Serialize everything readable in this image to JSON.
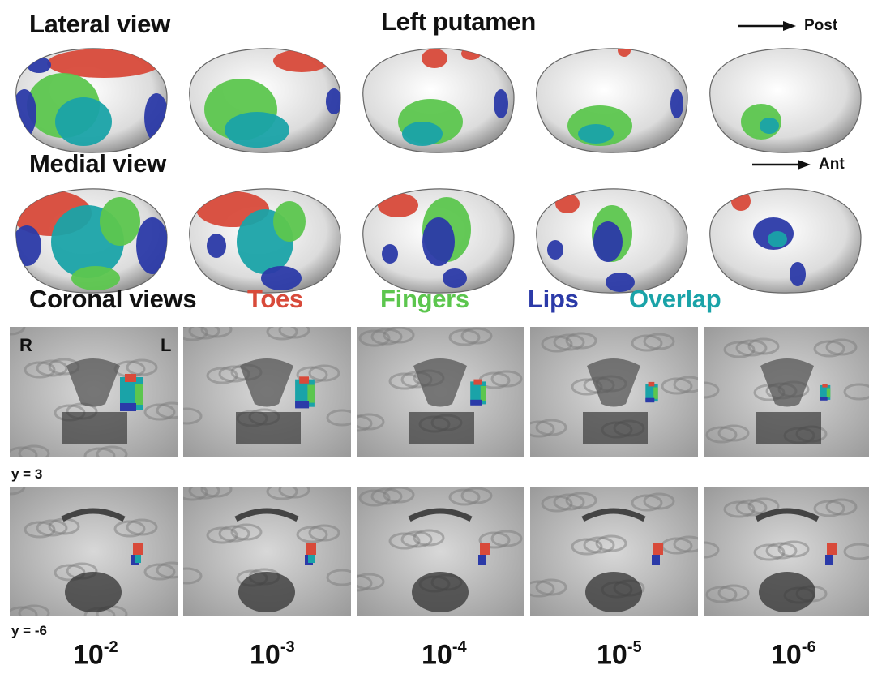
{
  "header": {
    "lateral_view": "Lateral view",
    "left_putamen": "Left putamen",
    "post": "Post",
    "medial_view": "Medial view",
    "ant": "Ant"
  },
  "legend": {
    "coronal_views": "Coronal views",
    "toes": "Toes",
    "fingers": "Fingers",
    "lips": "Lips",
    "overlap": "Overlap"
  },
  "colors": {
    "toes": "#d84a3a",
    "fingers": "#5cc64e",
    "lips": "#2b3aa8",
    "overlap": "#1aa3a8"
  },
  "coronal": {
    "right_marker": "R",
    "left_marker": "L",
    "slice_top": "y = 3",
    "slice_bottom": "y = -6"
  },
  "thresholds": [
    {
      "base": "10",
      "exponent": "-2"
    },
    {
      "base": "10",
      "exponent": "-3"
    },
    {
      "base": "10",
      "exponent": "-4"
    },
    {
      "base": "10",
      "exponent": "-5"
    },
    {
      "base": "10",
      "exponent": "-6"
    }
  ],
  "icons": {
    "post_arrow": "right-arrow-icon",
    "ant_arrow": "right-arrow-icon"
  }
}
